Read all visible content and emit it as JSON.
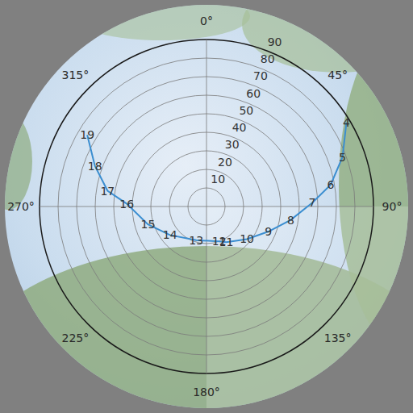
{
  "chart_data": {
    "type": "polar_line",
    "angle_ticks": [
      {
        "value": 0,
        "label": "0°"
      },
      {
        "value": 45,
        "label": "45°"
      },
      {
        "value": 90,
        "label": "90°"
      },
      {
        "value": 135,
        "label": "135°"
      },
      {
        "value": 180,
        "label": "180°"
      },
      {
        "value": 225,
        "label": "225°"
      },
      {
        "value": 270,
        "label": "270°"
      },
      {
        "value": 315,
        "label": "315°"
      }
    ],
    "rlim": [
      0,
      90
    ],
    "rticks": [
      10,
      20,
      30,
      40,
      50,
      60,
      70,
      80,
      90
    ],
    "grid": true,
    "color": "#3b8ed0",
    "labels": [
      4,
      5,
      6,
      7,
      8,
      9,
      10,
      11,
      12,
      13,
      14,
      15,
      16,
      17,
      18,
      19
    ],
    "azimuth": [
      59,
      70,
      80,
      88,
      99,
      112,
      129,
      151,
      160,
      197,
      232,
      253,
      272,
      279,
      290,
      301
    ],
    "zenith": [
      88,
      78,
      68,
      57,
      46,
      36,
      28,
      22,
      20,
      19,
      25,
      33,
      43,
      54,
      64,
      75
    ]
  }
}
